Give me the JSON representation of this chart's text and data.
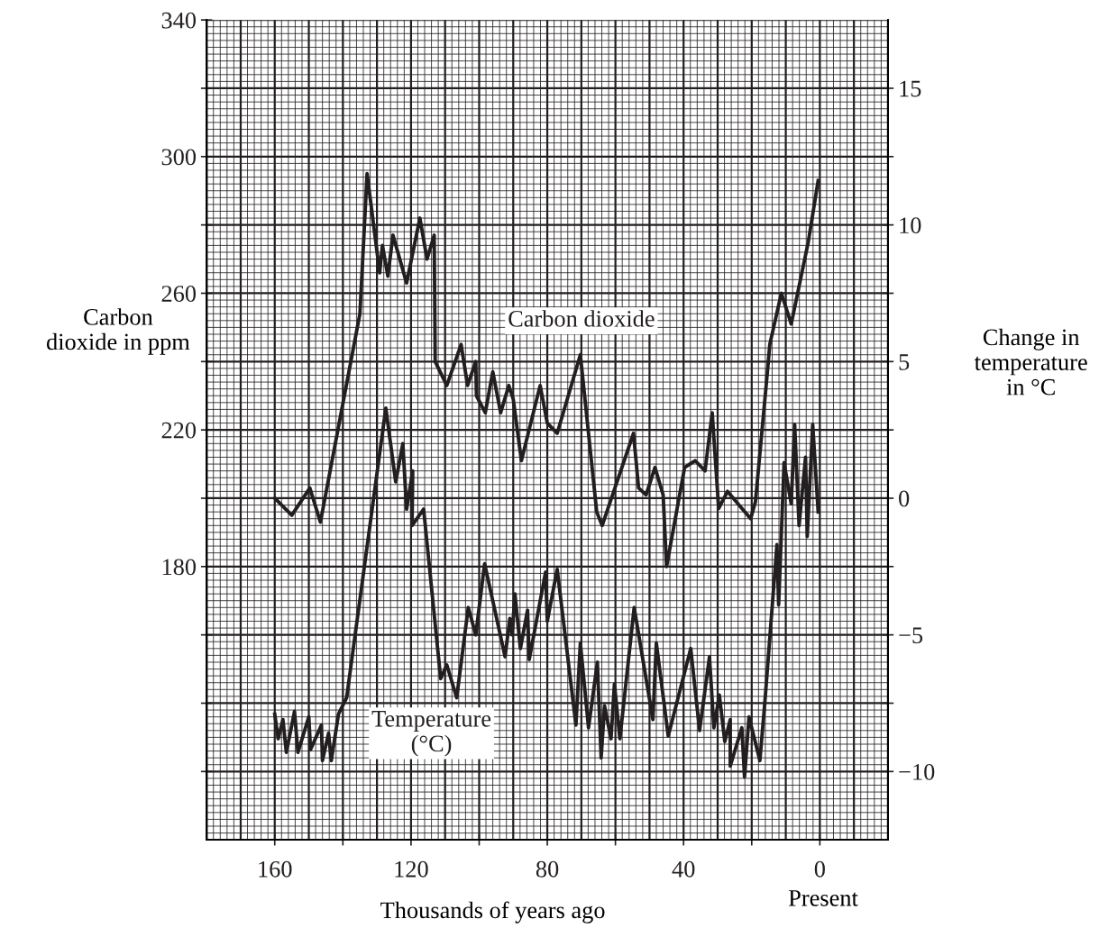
{
  "chart_data": {
    "type": "line",
    "xlabel": "Thousands of years ago",
    "ylabel": "Carbon\ndioxide in ppm",
    "y2label": "Change in\ntemperature\nin °C",
    "xlim": [
      180,
      -20
    ],
    "xticks": [
      160,
      {
        "value": 140,
        "label": null
      },
      120,
      {
        "value": 100,
        "label": null
      },
      80,
      {
        "value": 60,
        "label": null
      },
      40,
      {
        "value": 20,
        "label": null
      },
      0
    ],
    "ylim": [
      100,
      340
    ],
    "yticks": [
      {
        "value": 120,
        "label": null
      },
      {
        "value": 140,
        "label": null
      },
      {
        "value": 160,
        "label": null
      },
      180,
      {
        "value": 200,
        "label": null
      },
      220,
      {
        "value": 240,
        "label": null
      },
      260,
      {
        "value": 280,
        "label": null
      },
      300,
      {
        "value": 320,
        "label": null
      },
      340
    ],
    "y2lim": [
      -12.5,
      17.5
    ],
    "y2ticks": [
      -10,
      {
        "value": -7.5,
        "label": null
      },
      -5,
      {
        "value": -2.5,
        "label": null
      },
      0,
      {
        "value": 2.5,
        "label": null
      },
      5,
      {
        "value": 7.5,
        "label": null
      },
      10,
      {
        "value": 12.5,
        "label": null
      },
      15
    ],
    "grid": true,
    "legend": false,
    "marker": "none",
    "line_style": "solid",
    "annotations": [
      "Present"
    ],
    "series": [
      {
        "name": "Carbon dioxide",
        "color": "#231f20",
        "x": [
          160,
          155,
          149.7,
          146.6,
          135,
          132.9,
          129.2,
          128.4,
          126.8,
          125.3,
          121.3,
          117.4,
          115.3,
          113.2,
          112.9,
          109.5,
          105.3,
          103.4,
          101,
          100.8,
          98.2,
          96,
          93.7,
          91.3,
          90,
          87.6,
          82.1,
          80,
          77.1,
          70.3,
          65.5,
          63.9,
          54.7,
          53.2,
          51,
          48.4,
          46,
          45,
          39.7,
          36.6,
          33.7,
          31.6,
          29.7,
          27.1,
          20.3,
          18.9,
          15.3,
          14.7,
          11.3,
          8.4,
          3.4,
          0.5
        ],
        "values": [
          200,
          195,
          203,
          193,
          254,
          295,
          266,
          274,
          265,
          277,
          263,
          282,
          270,
          277,
          240,
          233,
          245,
          233,
          240,
          230,
          225,
          237,
          225,
          233,
          229,
          211,
          233,
          222,
          219,
          242,
          196,
          192,
          219,
          203,
          201,
          209,
          201,
          180,
          209,
          211,
          208,
          225,
          197,
          202,
          194,
          199,
          238,
          245,
          260,
          251,
          275,
          293
        ]
      },
      {
        "name": "Temperature\n(°C)",
        "color": "#231f20",
        "axis": "y2",
        "x": [
          160,
          159,
          157.6,
          156.6,
          154.2,
          153.2,
          150,
          149.5,
          146.3,
          146,
          144.2,
          143.4,
          141.3,
          138.9,
          127.4,
          124.5,
          122.4,
          121.3,
          119.5,
          119.7,
          116.3,
          111.3,
          109.5,
          106.6,
          103.2,
          101,
          98.4,
          92.4,
          91,
          90.3,
          89.5,
          87.9,
          85.8,
          85.3,
          80.5,
          80,
          77.1,
          71.6,
          70.3,
          67.9,
          65.3,
          64.2,
          63.2,
          61.3,
          60.3,
          58.7,
          54.5,
          49,
          48,
          44.5,
          37.9,
          35.3,
          32.4,
          31.1,
          29.5,
          27.9,
          26.3,
          26.3,
          22.9,
          22.1,
          20.8,
          17.6,
          16.1,
          12.6,
          12.1,
          10.5,
          8.4,
          7.4,
          6.1,
          4.2,
          3.7,
          2.1,
          0.5
        ],
        "values": [
          -7.9,
          -8.8,
          -8.1,
          -9.3,
          -7.8,
          -9.3,
          -8,
          -9.2,
          -8.3,
          -9.6,
          -8.6,
          -9.6,
          -7.9,
          -7.3,
          3.3,
          0.6,
          2,
          -0.4,
          1,
          -1,
          -0.4,
          -6.6,
          -6.1,
          -7.3,
          -4,
          -5,
          -2.4,
          -5.8,
          -4.4,
          -5,
          -3.5,
          -5.5,
          -4.1,
          -5.9,
          -2.7,
          -4.5,
          -2.6,
          -8.3,
          -5.3,
          -8.4,
          -6,
          -9.5,
          -7.6,
          -8.8,
          -6.8,
          -8.8,
          -4,
          -8.1,
          -5.3,
          -8.7,
          -5.5,
          -8.5,
          -5.8,
          -8.4,
          -7.2,
          -8.9,
          -8.1,
          -9.8,
          -8.4,
          -10.2,
          -8,
          -9.6,
          -7.4,
          -1.7,
          -3.9,
          1.3,
          -0.2,
          2.7,
          -1,
          1.5,
          -1.4,
          2.7,
          -0.5
        ]
      }
    ]
  }
}
